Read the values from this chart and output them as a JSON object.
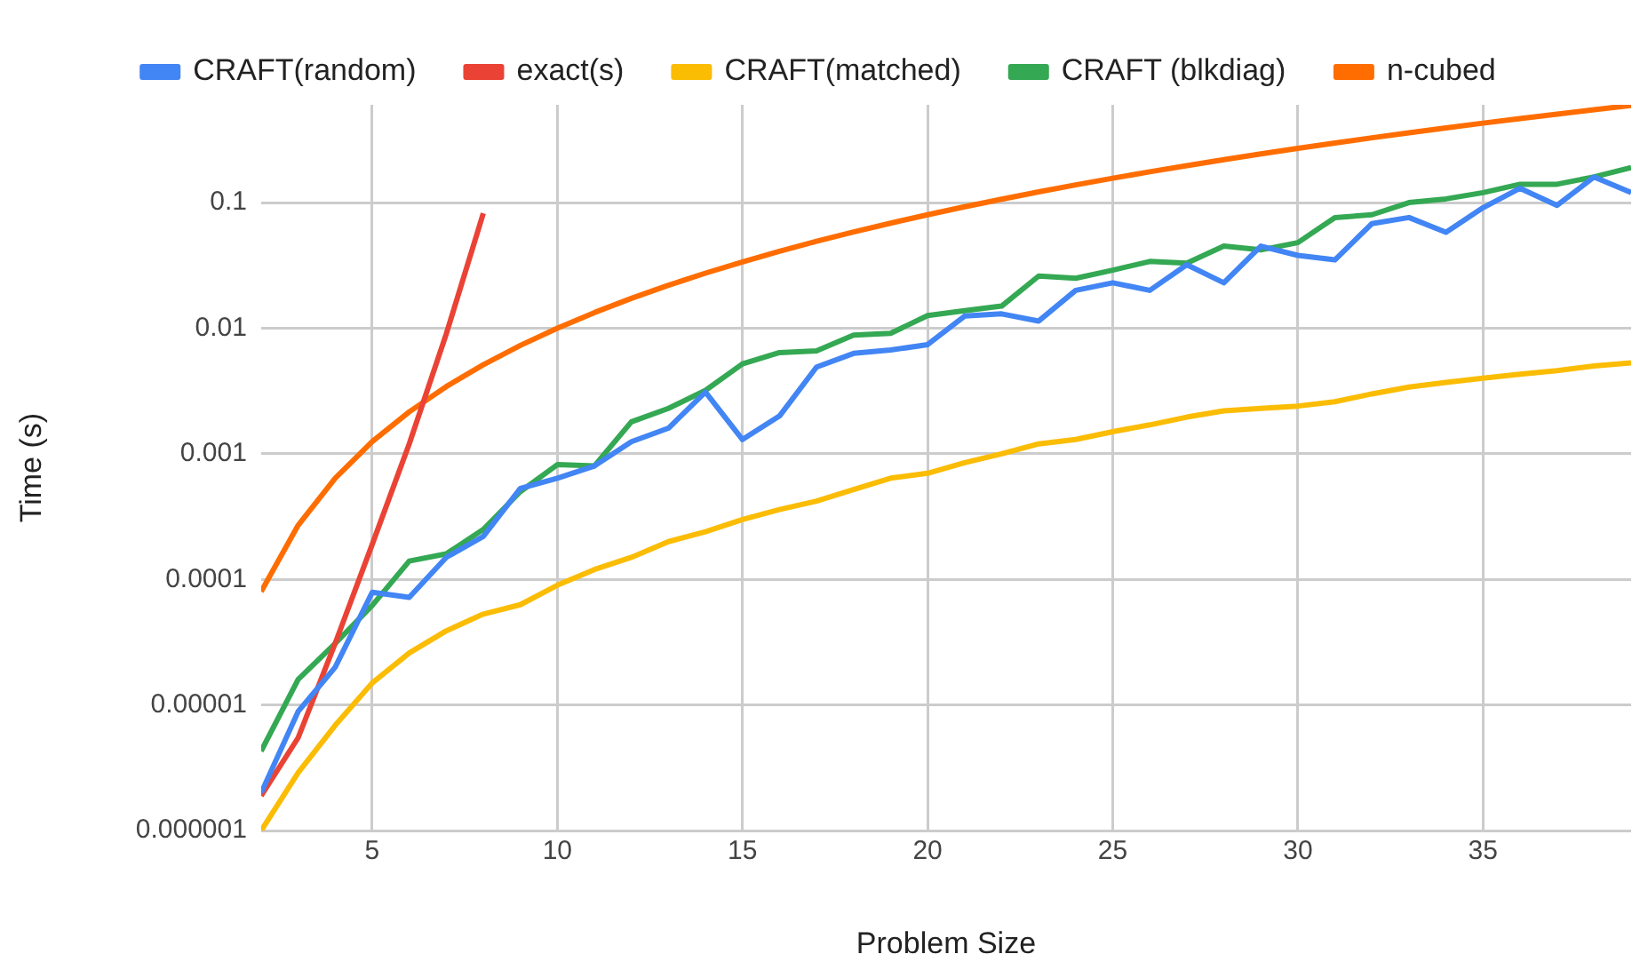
{
  "chart_data": {
    "type": "line",
    "xlabel": "Problem Size",
    "ylabel": "Time (s)",
    "x": [
      2,
      3,
      4,
      5,
      6,
      7,
      8,
      9,
      10,
      11,
      12,
      13,
      14,
      15,
      16,
      17,
      18,
      19,
      20,
      21,
      22,
      23,
      24,
      25,
      26,
      27,
      28,
      29,
      30,
      31,
      32,
      33,
      34,
      35,
      36,
      37,
      38,
      39
    ],
    "series": [
      {
        "name": "CRAFT(random)",
        "color": "#4285f4",
        "values": [
          2e-06,
          8.9e-06,
          2e-05,
          7.9e-05,
          7.2e-05,
          0.00015,
          0.00022,
          0.00053,
          0.00064,
          0.0008,
          0.00125,
          0.0016,
          0.0031,
          0.0013,
          0.002,
          0.0049,
          0.0063,
          0.0067,
          0.0074,
          0.0125,
          0.013,
          0.0114,
          0.02,
          0.023,
          0.02,
          0.032,
          0.023,
          0.045,
          0.038,
          0.035,
          0.068,
          0.076,
          0.058,
          0.091,
          0.13,
          0.095,
          0.16,
          0.12
        ]
      },
      {
        "name": "exact(s)",
        "color": "#ea4335",
        "x": [
          2,
          3,
          4,
          5,
          6,
          7,
          8
        ],
        "values": [
          1.9e-06,
          5.5e-06,
          3.1e-05,
          0.00019,
          0.0012,
          0.009,
          0.082
        ]
      },
      {
        "name": "CRAFT(matched)",
        "color": "#fbbc04",
        "values": [
          1e-06,
          2.9e-06,
          6.9e-06,
          1.5e-05,
          2.6e-05,
          3.9e-05,
          5.3e-05,
          6.3e-05,
          9e-05,
          0.00012,
          0.00015,
          0.0002,
          0.00024,
          0.0003,
          0.00036,
          0.00042,
          0.00052,
          0.00064,
          0.0007,
          0.00085,
          0.001,
          0.0012,
          0.0013,
          0.0015,
          0.0017,
          0.00196,
          0.0022,
          0.0023,
          0.0024,
          0.0026,
          0.003,
          0.0034,
          0.0037,
          0.004,
          0.0043,
          0.0046,
          0.005,
          0.0053
        ]
      },
      {
        "name": "CRAFT (blkdiag)",
        "color": "#34a853",
        "values": [
          4.3e-06,
          1.6e-05,
          3.1e-05,
          6.2e-05,
          0.00014,
          0.00016,
          0.00025,
          0.0005,
          0.00082,
          0.0008,
          0.0018,
          0.0023,
          0.0032,
          0.0052,
          0.0064,
          0.0066,
          0.0088,
          0.0091,
          0.0126,
          0.0138,
          0.015,
          0.026,
          0.025,
          0.029,
          0.034,
          0.033,
          0.045,
          0.042,
          0.048,
          0.076,
          0.08,
          0.1,
          0.107,
          0.12,
          0.14,
          0.14,
          0.16,
          0.19
        ]
      },
      {
        "name": "n-cubed",
        "color": "#ff6d01",
        "values": [
          8e-05,
          0.00027,
          0.00064,
          0.00125,
          0.00216,
          0.00343,
          0.00512,
          0.00729,
          0.01,
          0.01331,
          0.01728,
          0.02197,
          0.02744,
          0.03375,
          0.04096,
          0.04913,
          0.05832,
          0.06859,
          0.08,
          0.09261,
          0.10648,
          0.12167,
          0.13824,
          0.15625,
          0.17576,
          0.19683,
          0.21952,
          0.24389,
          0.27,
          0.29791,
          0.32768,
          0.35937,
          0.39304,
          0.42875,
          0.46656,
          0.50653,
          0.54872,
          0.59319
        ]
      }
    ],
    "xlim": [
      2,
      39
    ],
    "xticks": [
      5,
      10,
      15,
      20,
      25,
      30,
      35
    ],
    "ylim": [
      1e-06,
      0.6
    ],
    "yticks": [
      {
        "value": 1e-06,
        "label": "0.000001"
      },
      {
        "value": 1e-05,
        "label": "0.00001"
      },
      0.0001,
      0.001,
      0.01,
      0.1
    ],
    "log": "y",
    "grid": true,
    "legend": "top",
    "marker": "none",
    "line_style": "solid"
  }
}
